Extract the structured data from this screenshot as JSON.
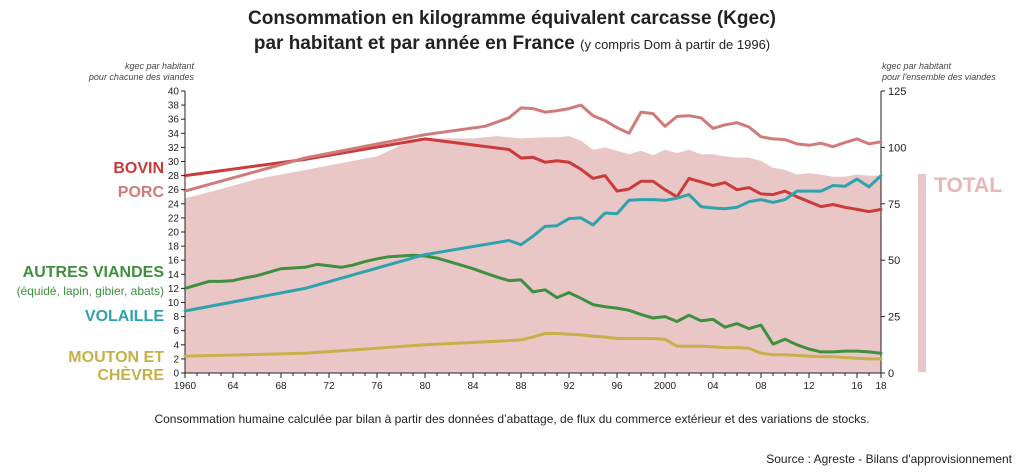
{
  "title_line1": "Consommation en kilogramme équivalent carcasse (Kgec)",
  "title_line2": "par habitant et par année en France",
  "title_note": "(y compris Dom à partir de 1996)",
  "left_axis_unit": [
    "kgec par habitant",
    "pour chacune des viandes"
  ],
  "right_axis_unit": [
    "kgec par habitant",
    "pour l'ensemble des viandes"
  ],
  "labels": {
    "bovin": "BOVIN",
    "porc": "PORC",
    "autres": "AUTRES VIANDES",
    "autres_sub": "(équidé, lapin, gibier, abats)",
    "volaille": "VOLAILLE",
    "mouton": "MOUTON ET CHÈVRE",
    "total": "TOTAL"
  },
  "caption": "Consommation humaine calculée par bilan à partir des données d’abattage, de flux du commerce extérieur et des variations de stocks.",
  "source": "Source : Agreste - Bilans d'approvisionnement",
  "colors": {
    "bovin": "#cc3b3b",
    "porc": "#d17a7a",
    "autres": "#3f8f3f",
    "volaille": "#2ea3ad",
    "mouton": "#c7b04a",
    "total": "#e9c7c7"
  },
  "chart_data": {
    "type": "line",
    "x_tick_labels": [
      "1960",
      "64",
      "68",
      "72",
      "76",
      "80",
      "84",
      "88",
      "92",
      "96",
      "2000",
      "04",
      "08",
      "12",
      "16",
      "18"
    ],
    "xlim": [
      1960,
      2018
    ],
    "ylim_left": [
      0,
      40
    ],
    "yticks_left": [
      0,
      2,
      4,
      6,
      8,
      10,
      12,
      14,
      16,
      18,
      20,
      22,
      24,
      26,
      28,
      30,
      32,
      34,
      36,
      38,
      40
    ],
    "ylim_right": [
      0,
      125
    ],
    "yticks_right": [
      0,
      25,
      50,
      75,
      100,
      125
    ],
    "grid": false,
    "series": [
      {
        "name": "BOVIN",
        "axis": "left",
        "color_key": "bovin",
        "points": [
          [
            1960,
            28
          ],
          [
            1970,
            30.3
          ],
          [
            1980,
            33.2
          ],
          [
            1987,
            31.7
          ],
          [
            1988,
            30.5
          ],
          [
            1989,
            30.6
          ],
          [
            1990,
            29.9
          ],
          [
            1991,
            30.1
          ],
          [
            1992,
            29.9
          ],
          [
            1993,
            28.9
          ],
          [
            1994,
            27.6
          ],
          [
            1995,
            28
          ],
          [
            1996,
            25.8
          ],
          [
            1997,
            26.1
          ],
          [
            1998,
            27.2
          ],
          [
            1999,
            27.2
          ],
          [
            2000,
            26
          ],
          [
            2001,
            25
          ],
          [
            2002,
            27.6
          ],
          [
            2003,
            27.1
          ],
          [
            2004,
            26.6
          ],
          [
            2005,
            27
          ],
          [
            2006,
            26
          ],
          [
            2007,
            26.3
          ],
          [
            2008,
            25.4
          ],
          [
            2009,
            25.3
          ],
          [
            2010,
            25.8
          ],
          [
            2011,
            25
          ],
          [
            2012,
            24.3
          ],
          [
            2013,
            23.6
          ],
          [
            2014,
            23.9
          ],
          [
            2015,
            23.5
          ],
          [
            2016,
            23.2
          ],
          [
            2017,
            22.9
          ],
          [
            2018,
            23.2
          ]
        ]
      },
      {
        "name": "PORC",
        "axis": "left",
        "color_key": "porc",
        "points": [
          [
            1960,
            25.8
          ],
          [
            1970,
            30.5
          ],
          [
            1980,
            33.8
          ],
          [
            1985,
            35
          ],
          [
            1987,
            36.2
          ],
          [
            1988,
            37.6
          ],
          [
            1989,
            37.5
          ],
          [
            1990,
            37
          ],
          [
            1991,
            37.2
          ],
          [
            1992,
            37.5
          ],
          [
            1993,
            38
          ],
          [
            1994,
            36.5
          ],
          [
            1995,
            35.8
          ],
          [
            1996,
            34.8
          ],
          [
            1997,
            34
          ],
          [
            1998,
            37
          ],
          [
            1999,
            36.8
          ],
          [
            2000,
            35
          ],
          [
            2001,
            36.4
          ],
          [
            2002,
            36.5
          ],
          [
            2003,
            36.2
          ],
          [
            2004,
            34.7
          ],
          [
            2005,
            35.2
          ],
          [
            2006,
            35.5
          ],
          [
            2007,
            34.9
          ],
          [
            2008,
            33.5
          ],
          [
            2009,
            33.2
          ],
          [
            2010,
            33.1
          ],
          [
            2011,
            32.5
          ],
          [
            2012,
            32.3
          ],
          [
            2013,
            32.6
          ],
          [
            2014,
            32.1
          ],
          [
            2015,
            32.7
          ],
          [
            2016,
            33.2
          ],
          [
            2017,
            32.5
          ],
          [
            2018,
            32.8
          ]
        ]
      },
      {
        "name": "AUTRES VIANDES",
        "axis": "left",
        "color_key": "autres",
        "points": [
          [
            1960,
            12
          ],
          [
            1961,
            12.5
          ],
          [
            1962,
            13
          ],
          [
            1963,
            13
          ],
          [
            1964,
            13.1
          ],
          [
            1965,
            13.5
          ],
          [
            1966,
            13.8
          ],
          [
            1967,
            14.3
          ],
          [
            1968,
            14.8
          ],
          [
            1969,
            14.9
          ],
          [
            1970,
            15
          ],
          [
            1971,
            15.4
          ],
          [
            1972,
            15.2
          ],
          [
            1973,
            15
          ],
          [
            1974,
            15.3
          ],
          [
            1975,
            15.8
          ],
          [
            1976,
            16.2
          ],
          [
            1977,
            16.5
          ],
          [
            1978,
            16.6
          ],
          [
            1979,
            16.7
          ],
          [
            1980,
            16.6
          ],
          [
            1981,
            16.3
          ],
          [
            1982,
            15.8
          ],
          [
            1983,
            15.3
          ],
          [
            1984,
            14.8
          ],
          [
            1985,
            14.2
          ],
          [
            1986,
            13.6
          ],
          [
            1987,
            13.1
          ],
          [
            1988,
            13.2
          ],
          [
            1989,
            11.5
          ],
          [
            1990,
            11.8
          ],
          [
            1991,
            10.7
          ],
          [
            1992,
            11.4
          ],
          [
            1993,
            10.6
          ],
          [
            1994,
            9.7
          ],
          [
            1995,
            9.4
          ],
          [
            1996,
            9.2
          ],
          [
            1997,
            8.9
          ],
          [
            1998,
            8.3
          ],
          [
            1999,
            7.8
          ],
          [
            2000,
            8
          ],
          [
            2001,
            7.3
          ],
          [
            2002,
            8.2
          ],
          [
            2003,
            7.4
          ],
          [
            2004,
            7.6
          ],
          [
            2005,
            6.5
          ],
          [
            2006,
            7
          ],
          [
            2007,
            6.3
          ],
          [
            2008,
            6.8
          ],
          [
            2009,
            4.1
          ],
          [
            2010,
            4.8
          ],
          [
            2011,
            4
          ],
          [
            2012,
            3.4
          ],
          [
            2013,
            3
          ],
          [
            2014,
            3
          ],
          [
            2015,
            3.1
          ],
          [
            2016,
            3.1
          ],
          [
            2017,
            3
          ],
          [
            2018,
            2.8
          ]
        ]
      },
      {
        "name": "VOLAILLE",
        "axis": "left",
        "color_key": "volaille",
        "points": [
          [
            1960,
            8.8
          ],
          [
            1970,
            12
          ],
          [
            1980,
            16.8
          ],
          [
            1987,
            18.8
          ],
          [
            1988,
            18.2
          ],
          [
            1989,
            19.4
          ],
          [
            1990,
            20.8
          ],
          [
            1991,
            20.9
          ],
          [
            1992,
            21.9
          ],
          [
            1993,
            22
          ],
          [
            1994,
            21
          ],
          [
            1995,
            22.7
          ],
          [
            1996,
            22.6
          ],
          [
            1997,
            24.5
          ],
          [
            1998,
            24.6
          ],
          [
            1999,
            24.6
          ],
          [
            2000,
            24.5
          ],
          [
            2001,
            24.8
          ],
          [
            2002,
            25.3
          ],
          [
            2003,
            23.6
          ],
          [
            2004,
            23.4
          ],
          [
            2005,
            23.3
          ],
          [
            2006,
            23.5
          ],
          [
            2007,
            24.3
          ],
          [
            2008,
            24.6
          ],
          [
            2009,
            24.2
          ],
          [
            2010,
            24.6
          ],
          [
            2011,
            25.8
          ],
          [
            2012,
            25.8
          ],
          [
            2013,
            25.8
          ],
          [
            2014,
            26.6
          ],
          [
            2015,
            26.5
          ],
          [
            2016,
            27.5
          ],
          [
            2017,
            26.4
          ],
          [
            2018,
            28
          ]
        ]
      },
      {
        "name": "MOUTON ET CHÈVRE",
        "axis": "left",
        "color_key": "mouton",
        "points": [
          [
            1960,
            2.4
          ],
          [
            1970,
            2.8
          ],
          [
            1980,
            4
          ],
          [
            1986,
            4.5
          ],
          [
            1988,
            4.7
          ],
          [
            1989,
            5.1
          ],
          [
            1990,
            5.6
          ],
          [
            1991,
            5.6
          ],
          [
            1992,
            5.5
          ],
          [
            1993,
            5.4
          ],
          [
            1994,
            5.2
          ],
          [
            1995,
            5.1
          ],
          [
            1996,
            4.9
          ],
          [
            1997,
            4.9
          ],
          [
            1998,
            4.9
          ],
          [
            1999,
            4.9
          ],
          [
            2000,
            4.8
          ],
          [
            2001,
            3.8
          ],
          [
            2002,
            3.8
          ],
          [
            2003,
            3.8
          ],
          [
            2004,
            3.7
          ],
          [
            2005,
            3.6
          ],
          [
            2006,
            3.6
          ],
          [
            2007,
            3.5
          ],
          [
            2008,
            2.8
          ],
          [
            2009,
            2.6
          ],
          [
            2010,
            2.6
          ],
          [
            2011,
            2.5
          ],
          [
            2012,
            2.4
          ],
          [
            2013,
            2.3
          ],
          [
            2014,
            2.3
          ],
          [
            2015,
            2.2
          ],
          [
            2016,
            2.1
          ],
          [
            2017,
            2
          ],
          [
            2018,
            2
          ]
        ]
      },
      {
        "name": "TOTAL",
        "axis": "right",
        "type": "area",
        "color_key": "total",
        "points": [
          [
            1960,
            77.5
          ],
          [
            1963,
            81.5
          ],
          [
            1966,
            86
          ],
          [
            1970,
            90
          ],
          [
            1974,
            94
          ],
          [
            1976,
            96
          ],
          [
            1978,
            101
          ],
          [
            1980,
            104
          ],
          [
            1984,
            104
          ],
          [
            1986,
            105
          ],
          [
            1988,
            104
          ],
          [
            1990,
            104.5
          ],
          [
            1991,
            104.5
          ],
          [
            1992,
            105
          ],
          [
            1993,
            103
          ],
          [
            1994,
            99
          ],
          [
            1995,
            100
          ],
          [
            1996,
            98.5
          ],
          [
            1997,
            97
          ],
          [
            1998,
            98.5
          ],
          [
            1999,
            96.5
          ],
          [
            2000,
            99
          ],
          [
            2001,
            97.5
          ],
          [
            2002,
            99
          ],
          [
            2003,
            97
          ],
          [
            2004,
            97
          ],
          [
            2005,
            96
          ],
          [
            2006,
            95.5
          ],
          [
            2007,
            95.5
          ],
          [
            2008,
            94
          ],
          [
            2009,
            91
          ],
          [
            2010,
            90
          ],
          [
            2011,
            88
          ],
          [
            2012,
            88.5
          ],
          [
            2013,
            88
          ],
          [
            2014,
            87
          ],
          [
            2015,
            87
          ],
          [
            2016,
            88
          ],
          [
            2017,
            87.5
          ],
          [
            2018,
            87.5
          ]
        ]
      }
    ]
  }
}
